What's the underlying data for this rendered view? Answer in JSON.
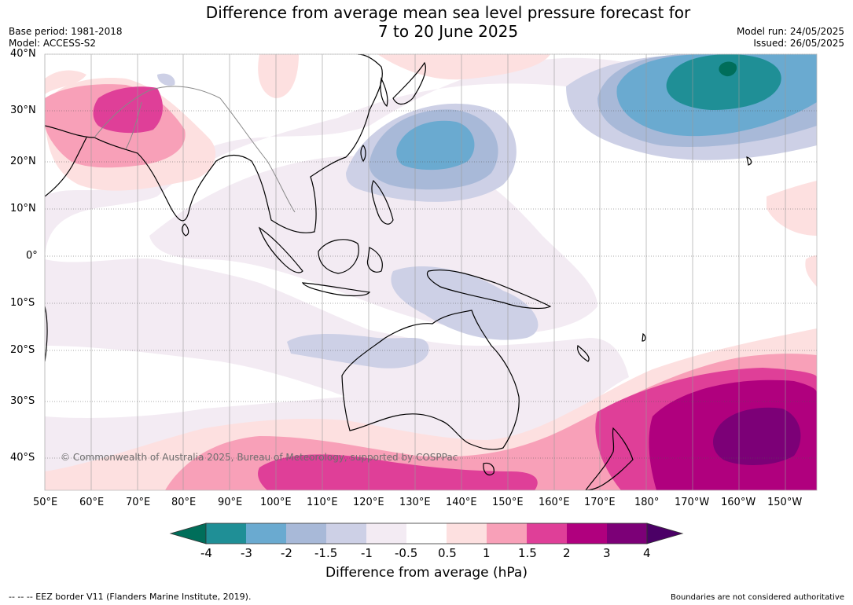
{
  "title": {
    "line1": "Difference from average mean sea level pressure forecast for",
    "line2": "7 to 20 June 2025"
  },
  "meta": {
    "base_period": "Base period: 1981-2018",
    "model": "Model: ACCESS-S2",
    "model_run": "Model run: 24/05/2025",
    "issued": "Issued: 26/05/2025"
  },
  "map": {
    "lat_labels": [
      "40°N",
      "30°N",
      "20°N",
      "10°N",
      "0°",
      "10°S",
      "20°S",
      "30°S",
      "40°S"
    ],
    "lon_labels": [
      "50°E",
      "60°E",
      "70°E",
      "80°E",
      "90°E",
      "100°E",
      "110°E",
      "120°E",
      "130°E",
      "140°E",
      "150°E",
      "160°E",
      "170°E",
      "180°",
      "170°W",
      "160°W",
      "150°W"
    ],
    "copyright": "© Commonwealth of Australia 2025, Bureau of Meteorology, supported by COSPPac"
  },
  "colorbar": {
    "tick_labels": [
      "-4",
      "-3",
      "-2",
      "-1.5",
      "-1",
      "-0.5",
      "0.5",
      "1",
      "1.5",
      "2",
      "3",
      "4"
    ],
    "colors": [
      "#006e5a",
      "#1f8f96",
      "#6aaad0",
      "#a8b9d8",
      "#cdd0e6",
      "#f3ebf3",
      "#ffffff",
      "#fde0e0",
      "#f8a0b8",
      "#df3f98",
      "#b0007e",
      "#7c0077",
      "#4b0066"
    ],
    "label": "Difference from average (hPa)"
  },
  "footer": {
    "eez": "--  --  -- EEZ border V11 (Flanders Marine Institute, 2019).",
    "boundaries": "Boundaries are not considered authoritative"
  }
}
